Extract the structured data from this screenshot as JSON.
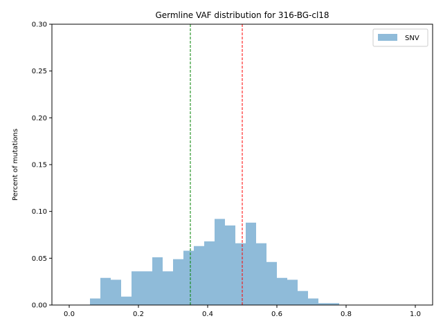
{
  "chart_data": {
    "type": "bar",
    "title": "Germline VAF distribution for 316-BG-cl18",
    "xlabel": "",
    "ylabel": "Percent of mutations",
    "xlim": [
      -0.05,
      1.05
    ],
    "ylim": [
      0.0,
      0.3
    ],
    "x_ticks": [
      "0.0",
      "0.2",
      "0.4",
      "0.6",
      "0.8",
      "1.0"
    ],
    "y_ticks": [
      "0.00",
      "0.05",
      "0.10",
      "0.15",
      "0.20",
      "0.25",
      "0.30"
    ],
    "bin_width": 0.03,
    "series": [
      {
        "name": "SNV",
        "color": "#8fbbd9",
        "bins": [
          {
            "x": 0.06,
            "value": 0.007
          },
          {
            "x": 0.09,
            "value": 0.029
          },
          {
            "x": 0.12,
            "value": 0.027
          },
          {
            "x": 0.15,
            "value": 0.009
          },
          {
            "x": 0.18,
            "value": 0.036
          },
          {
            "x": 0.21,
            "value": 0.036
          },
          {
            "x": 0.24,
            "value": 0.051
          },
          {
            "x": 0.27,
            "value": 0.036
          },
          {
            "x": 0.3,
            "value": 0.049
          },
          {
            "x": 0.33,
            "value": 0.058
          },
          {
            "x": 0.36,
            "value": 0.063
          },
          {
            "x": 0.39,
            "value": 0.068
          },
          {
            "x": 0.42,
            "value": 0.092
          },
          {
            "x": 0.45,
            "value": 0.085
          },
          {
            "x": 0.48,
            "value": 0.066
          },
          {
            "x": 0.51,
            "value": 0.088
          },
          {
            "x": 0.54,
            "value": 0.066
          },
          {
            "x": 0.57,
            "value": 0.046
          },
          {
            "x": 0.6,
            "value": 0.029
          },
          {
            "x": 0.63,
            "value": 0.027
          },
          {
            "x": 0.66,
            "value": 0.015
          },
          {
            "x": 0.69,
            "value": 0.007
          },
          {
            "x": 0.72,
            "value": 0.002
          },
          {
            "x": 0.75,
            "value": 0.002
          }
        ]
      }
    ],
    "reference_lines": [
      {
        "x": 0.35,
        "color": "#008000",
        "style": "dashed"
      },
      {
        "x": 0.5,
        "color": "#ff0000",
        "style": "dashed"
      }
    ],
    "legend": {
      "placement": "top-right",
      "entries": [
        "SNV"
      ]
    },
    "grid": false
  }
}
